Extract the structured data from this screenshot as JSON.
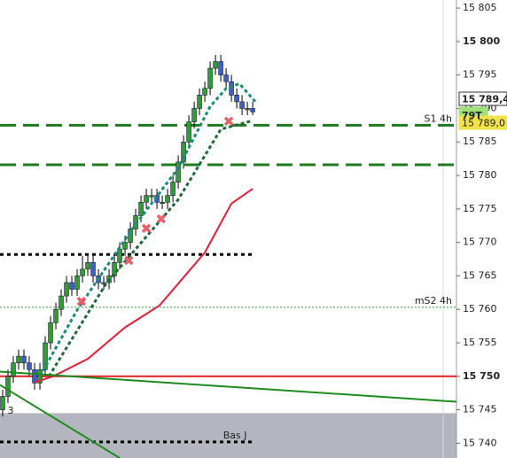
{
  "chart_data": {
    "type": "candlestick",
    "open": [
      15745,
      15747,
      15750,
      15752,
      15753,
      15752,
      15751,
      15749,
      15751,
      15755,
      15758,
      15760,
      15762,
      15764,
      15763,
      15765,
      15766,
      15767,
      15765,
      15764,
      15764,
      15765,
      15767,
      15769,
      15770,
      15772,
      15774,
      15776,
      15777,
      15777,
      15776,
      15776,
      15777,
      15779,
      15782,
      15785,
      15788,
      15790,
      15792,
      15793,
      15796,
      15797,
      15795,
      15794,
      15792,
      15791,
      15790,
      15790
    ],
    "high": [
      15748,
      15751,
      15753,
      15754,
      15754,
      15753,
      15752,
      15752,
      15756,
      15759,
      15761,
      15763,
      15765,
      15765,
      15766,
      15768,
      15768,
      15768,
      15766,
      15765,
      15766,
      15768,
      15770,
      15771,
      15773,
      15775,
      15777,
      15778,
      15778,
      15778,
      15777,
      15778,
      15780,
      15783,
      15786,
      15789,
      15791,
      15793,
      15794,
      15797,
      15798,
      15798,
      15796,
      15795,
      15793,
      15792,
      15791,
      15791
    ],
    "low": [
      15744,
      15746,
      15749,
      15751,
      15751,
      15750,
      15748,
      15748,
      15750,
      15754,
      15757,
      15759,
      15761,
      15762,
      15762,
      15764,
      15765,
      15764,
      15763,
      15763,
      15763,
      15764,
      15766,
      15768,
      15769,
      15771,
      15773,
      15775,
      15776,
      15775,
      15775,
      15775,
      15776,
      15778,
      15781,
      15784,
      15787,
      15789,
      15791,
      15792,
      15795,
      15794,
      15793,
      15791,
      15790,
      15789,
      15789,
      15789
    ],
    "close": [
      15747,
      15750,
      15752,
      15753,
      15752,
      15751,
      15749,
      15751,
      15755,
      15758,
      15760,
      15762,
      15764,
      15763,
      15765,
      15766,
      15767,
      15765,
      15764,
      15764,
      15765,
      15767,
      15769,
      15770,
      15772,
      15774,
      15776,
      15777,
      15777,
      15776,
      15776,
      15777,
      15779,
      15782,
      15785,
      15788,
      15790,
      15792,
      15793,
      15796,
      15797,
      15795,
      15794,
      15792,
      15791,
      15790,
      15790,
      15789.5
    ],
    "up_color": "#2e9e2e",
    "down_color": "#3a62c4",
    "xlim": [
      -0.5,
      85.3
    ],
    "ylim": [
      15737.8,
      15806.2
    ],
    "yticks": [
      {
        "value": 15740,
        "label": "15 740"
      },
      {
        "value": 15745,
        "label": "15 745"
      },
      {
        "value": 15750,
        "label": "15 750"
      },
      {
        "value": 15755,
        "label": "15 755"
      },
      {
        "value": 15760,
        "label": "15 760"
      },
      {
        "value": 15765,
        "label": "15 765"
      },
      {
        "value": 15770,
        "label": "15 770"
      },
      {
        "value": 15775,
        "label": "15 775"
      },
      {
        "value": 15780,
        "label": "15 780"
      },
      {
        "value": 15785,
        "label": "15 785"
      },
      {
        "value": 15790,
        "label": "15 790"
      },
      {
        "value": 15795,
        "label": "15 795"
      },
      {
        "value": 15800,
        "label": "15 800"
      },
      {
        "value": 15805,
        "label": "15 805"
      }
    ],
    "bold_ticks": [
      15750,
      15800
    ],
    "zone": {
      "below": 15744.5,
      "color": "#b4b6bf"
    },
    "levels": [
      {
        "value": 15787.5,
        "label": "S1 4h",
        "color": "#1f7a1f",
        "style": "dashed"
      },
      {
        "value": 15781.6,
        "color": "#1f7a1f",
        "style": "dashed"
      },
      {
        "value": 15768.2,
        "color": "#000000",
        "style": "dotted",
        "end": 47
      },
      {
        "value": 15760.3,
        "label": "mS2 4h",
        "color": "#2e9e2e",
        "style": "thin"
      },
      {
        "value": 15750,
        "color": "#e02020",
        "style": "solid"
      },
      {
        "value": 15740.2,
        "label": "Bas J",
        "color": "#000000",
        "style": "dotted",
        "end": 47
      }
    ],
    "lines": [
      {
        "color": "#e0203a",
        "style": "solid",
        "x": [
          6,
          9.5,
          16,
          23,
          29.5,
          38,
          43,
          47
        ],
        "values": [
          15749.1,
          15750,
          15752.6,
          15757.3,
          15760.6,
          15768.5,
          15775.8,
          15778
        ]
      },
      {
        "color": "#1a8a7a",
        "style": "dotted",
        "x": [
          7,
          14,
          24,
          33,
          39,
          42,
          44.5,
          47.5
        ],
        "values": [
          15750,
          15759.9,
          15771.6,
          15781.1,
          15790.3,
          15793,
          15793.7,
          15791
        ]
      },
      {
        "color": "#1f6a3a",
        "style": "dotted",
        "x": [
          8.7,
          19.5,
          33,
          41,
          47
        ],
        "values": [
          15750,
          15763.9,
          15776.4,
          15786.9,
          15788.2
        ]
      },
      {
        "color": "#1f8a1f",
        "style": "solid",
        "x": [
          -0.5,
          85.3
        ],
        "values": [
          15750.7,
          15746.2
        ]
      },
      {
        "color": "#1f8a1f",
        "style": "solid",
        "x": [
          -0.5,
          22
        ],
        "values": [
          15748.7,
          15737.8
        ]
      }
    ],
    "markers": {
      "color": "#e8606a",
      "x": [
        14.8,
        23.7,
        27,
        29.8,
        42.5
      ],
      "values": [
        15761.2,
        15767.3,
        15772.1,
        15773.5,
        15788.1
      ]
    },
    "annotation": "3",
    "price_labels": [
      "15 789,4",
      "79T",
      "15 789,0"
    ]
  }
}
